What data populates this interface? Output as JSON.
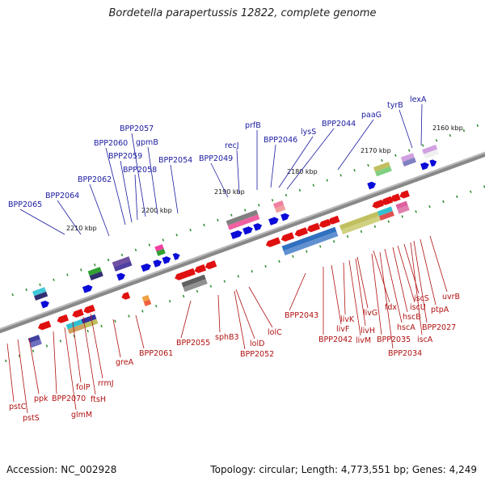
{
  "title": "Bordetella parapertussis 12822, complete genome",
  "footer": {
    "accession": "Accession: NC_002928",
    "summary": "Topology: circular; Length: 4,773,551 bp; Genes: 4,249"
  },
  "colors": {
    "forward_gene": "#0b0bd8",
    "reverse_gene": "#e01010",
    "forward_label": "#1a1aa0",
    "reverse_label": "#b01010",
    "backbone": "#888888",
    "tick": "#2a8a2a"
  },
  "kbp_ticks": [
    "2210 kbp",
    "2200 kbp",
    "2190 kbp",
    "2180 kbp",
    "2170 kbp",
    "2160 kbp"
  ],
  "forward_labels": [
    "BPP2065",
    "BPP2064",
    "BPP2062",
    "BPP2060",
    "BPP2059",
    "BPP2058",
    "BPP2057",
    "gpmB",
    "BPP2054",
    "BPP2049",
    "recJ",
    "prfB",
    "BPP2046",
    "lysS",
    "BPP2044",
    "paaG",
    "tyrB",
    "lexA"
  ],
  "reverse_labels": [
    "pstC",
    "pstS",
    "ppk",
    "BPP2070",
    "glmM",
    "folP",
    "ftsH",
    "rrmJ",
    "greA",
    "BPP2061",
    "BPP2055",
    "sphB3",
    "lolD",
    "BPP2052",
    "lolC",
    "BPP2043",
    "BPP2042",
    "livF",
    "livK",
    "livM",
    "livH",
    "livG",
    "BPP2035",
    "BPP2034",
    "fdx",
    "hscA",
    "hscB",
    "iscU",
    "iscS",
    "iscA",
    "BPP2027",
    "ptpA",
    "uvrB"
  ]
}
